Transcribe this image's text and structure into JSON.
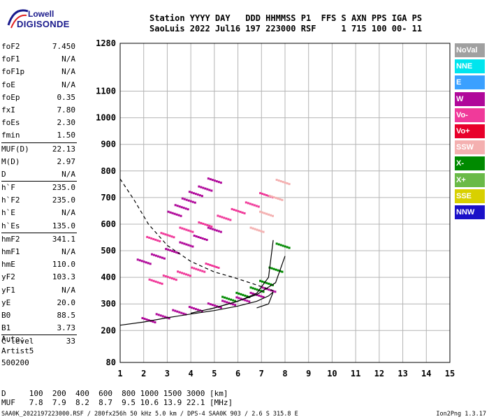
{
  "logo": {
    "line1": "Lowell",
    "line2": "DIGISONDE"
  },
  "header": {
    "row1": "Station YYYY DAY   DDD HHMMSS P1  FFS S AXN PPS IGA PS",
    "row2": "SaoLuis 2022 Jul16 197 223000 RSF     1 715 100 00- 11"
  },
  "params": [
    {
      "k": "foF2",
      "v": "7.450"
    },
    {
      "k": "foF1",
      "v": "N/A"
    },
    {
      "k": "foF1p",
      "v": "N/A"
    },
    {
      "k": "foE",
      "v": "N/A"
    },
    {
      "k": "foEp",
      "v": "0.35"
    },
    {
      "k": "fxI",
      "v": "7.80"
    },
    {
      "k": "foEs",
      "v": "2.30"
    },
    {
      "k": "fmin",
      "v": "1.50"
    },
    {
      "k": "MUF(D)",
      "v": "22.13"
    },
    {
      "k": "M(D)",
      "v": "2.97"
    },
    {
      "k": "D",
      "v": "N/A"
    },
    {
      "k": "h`F",
      "v": "235.0"
    },
    {
      "k": "h`F2",
      "v": "235.0"
    },
    {
      "k": "h`E",
      "v": "N/A"
    },
    {
      "k": "h`Es",
      "v": "135.0"
    },
    {
      "k": "hmF2",
      "v": "341.1"
    },
    {
      "k": "hmF1",
      "v": "N/A"
    },
    {
      "k": "hmE",
      "v": "110.0"
    },
    {
      "k": "yF2",
      "v": "103.3"
    },
    {
      "k": "yF1",
      "v": "N/A"
    },
    {
      "k": "yE",
      "v": "20.0"
    },
    {
      "k": "B0",
      "v": "88.5"
    },
    {
      "k": "B1",
      "v": "3.73"
    },
    {
      "k": "C-level",
      "v": "33"
    }
  ],
  "auto": {
    "line1": "Auto:",
    "line2": "Artist5",
    "line3": "500200"
  },
  "legend": [
    {
      "label": "NoVal",
      "color": "#a0a0a0"
    },
    {
      "label": "NNE",
      "color": "#00e5ee"
    },
    {
      "label": "E",
      "color": "#3aa0ff"
    },
    {
      "label": "W",
      "color": "#b0089a"
    },
    {
      "label": "Vo-",
      "color": "#f03a9a"
    },
    {
      "label": "Vo+",
      "color": "#e8002a"
    },
    {
      "label": "SSW",
      "color": "#f4b0b0"
    },
    {
      "label": "X-",
      "color": "#008a00"
    },
    {
      "label": "X+",
      "color": "#6aba48"
    },
    {
      "label": "SSE",
      "color": "#d8d000"
    },
    {
      "label": "NNW",
      "color": "#1a10c8"
    }
  ],
  "dtable": {
    "row1": "D     100  200  400  600  800 1000 1500 3000 [km]",
    "row2": "MUF   7.8  7.9  8.2  8.7  9.5 10.6 13.9 22.1 [MHz]"
  },
  "footer": "SAA0K_2022197223000.RSF / 280fx256h 50 kHz 5.0 km / DPS-4 SAA0K 903 / 2.6 S 315.8 E",
  "footer_right": "Ion2Png 1.3.17",
  "chart_data": {
    "type": "scatter",
    "xlim": [
      1,
      15
    ],
    "ylim": [
      80,
      1280
    ],
    "xticks": [
      1,
      2,
      3,
      4,
      5,
      6,
      7,
      8,
      9,
      10,
      11,
      12,
      13,
      14,
      15
    ],
    "yticks": [
      80,
      200,
      300,
      400,
      500,
      600,
      700,
      800,
      900,
      1000,
      1100,
      1280
    ],
    "grid": true,
    "series": [
      {
        "color": "#b0089a",
        "x": [
          2.2,
          2.8,
          3.5,
          4.2,
          5.0,
          5.6,
          6.2,
          6.8,
          7.3
        ],
        "y": [
          240,
          255,
          270,
          282,
          295,
          305,
          318,
          335,
          355
        ]
      },
      {
        "color": "#f03a9a",
        "x": [
          2.4,
          3.0,
          3.8,
          4.6,
          5.4,
          6.0,
          6.6,
          7.2
        ],
        "y": [
          545,
          560,
          580,
          600,
          625,
          650,
          675,
          710
        ]
      },
      {
        "color": "#b0089a",
        "x": [
          2.0,
          2.6,
          3.2,
          3.8,
          4.4,
          5.0
        ],
        "y": [
          460,
          480,
          500,
          525,
          550,
          580
        ]
      },
      {
        "color": "#f03a9a",
        "x": [
          2.5,
          3.1,
          3.7,
          4.3,
          4.9
        ],
        "y": [
          385,
          400,
          415,
          430,
          445
        ]
      },
      {
        "color": "#b0089a",
        "x": [
          3.3,
          3.6,
          3.9,
          4.2,
          4.6,
          5.0
        ],
        "y": [
          640,
          665,
          690,
          715,
          735,
          765
        ]
      },
      {
        "color": "#008a00",
        "x": [
          5.6,
          6.2,
          6.8,
          7.2,
          7.6,
          7.9
        ],
        "y": [
          320,
          335,
          355,
          380,
          430,
          520
        ]
      },
      {
        "color": "#f4b0b0",
        "x": [
          6.8,
          7.2,
          7.6,
          7.9
        ],
        "y": [
          580,
          640,
          700,
          760
        ]
      }
    ],
    "lines": [
      {
        "style": "dashed",
        "x": [
          1.0,
          1.6,
          2.2,
          3.0,
          4.0,
          5.0,
          5.8,
          6.5,
          7.0,
          7.5
        ],
        "y": [
          770,
          690,
          600,
          520,
          460,
          420,
          400,
          380,
          365,
          350
        ]
      },
      {
        "style": "solid",
        "x": [
          1.0,
          2.0,
          3.0,
          4.0,
          5.0,
          6.0,
          6.8,
          7.3,
          7.5,
          7.3,
          6.8
        ],
        "y": [
          220,
          232,
          248,
          262,
          275,
          292,
          310,
          330,
          345,
          300,
          285
        ]
      },
      {
        "style": "solid",
        "x": [
          4.0,
          5.0,
          6.0,
          6.8,
          7.3,
          7.5
        ],
        "y": [
          265,
          285,
          310,
          340,
          400,
          540
        ]
      },
      {
        "style": "solid",
        "x": [
          4.8,
          5.8,
          6.8,
          7.6,
          8.0
        ],
        "y": [
          280,
          305,
          335,
          380,
          480
        ]
      }
    ]
  }
}
